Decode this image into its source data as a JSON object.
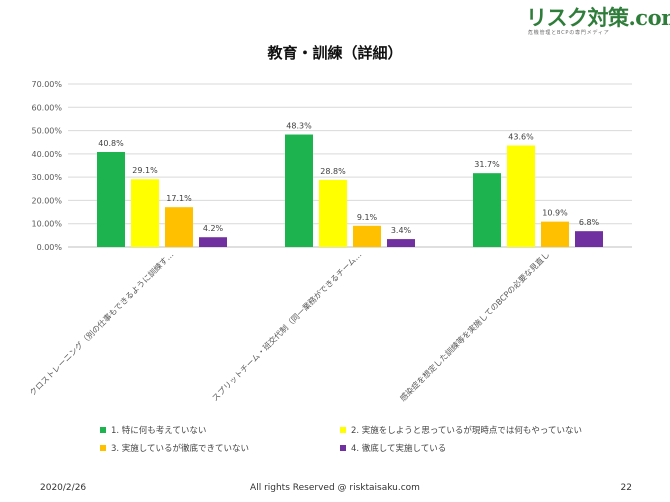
{
  "header": {
    "logo_text": "リスク対策.com",
    "logo_tagline": "危機管理とBCPの専門メディア"
  },
  "chart_data": {
    "type": "bar",
    "title": "教育・訓練（詳細）",
    "xlabel": "",
    "ylabel": "",
    "ylim": [
      0,
      70
    ],
    "yticks": [
      "0.00%",
      "10.00%",
      "20.00%",
      "30.00%",
      "40.00%",
      "50.00%",
      "60.00%",
      "70.00%"
    ],
    "grid": true,
    "legend_position": "bottom",
    "categories": [
      "クロストレーニング（別の仕事もできるように訓練す…",
      "スプリットチーム・班交代制（同一業務ができるチーム…",
      "感染症を想定した訓練等を実施してのBCPの必要な見直し"
    ],
    "series": [
      {
        "name": "1. 特に何も考えていない",
        "color": "#1db34f",
        "values": [
          40.8,
          48.3,
          31.7
        ],
        "labels": [
          "40.8%",
          "48.3%",
          "31.7%"
        ]
      },
      {
        "name": "2. 実施をしようと思っているが現時点では何もやっていない",
        "color": "#ffff00",
        "values": [
          29.1,
          28.8,
          43.6
        ],
        "labels": [
          "29.1%",
          "28.8%",
          "43.6%"
        ]
      },
      {
        "name": "3. 実施しているが徹底できていない",
        "color": "#ffc000",
        "values": [
          17.1,
          9.1,
          10.9
        ],
        "labels": [
          "17.1%",
          "9.1%",
          "10.9%"
        ]
      },
      {
        "name": "4. 徹底して実施している",
        "color": "#7030a0",
        "values": [
          4.2,
          3.4,
          6.8
        ],
        "labels": [
          "4.2%",
          "3.4%",
          "6.8%"
        ]
      }
    ]
  },
  "footer": {
    "date": "2020/2/26",
    "copyright": "All rights Reserved @ risktaisaku.com",
    "page_number": "22"
  }
}
